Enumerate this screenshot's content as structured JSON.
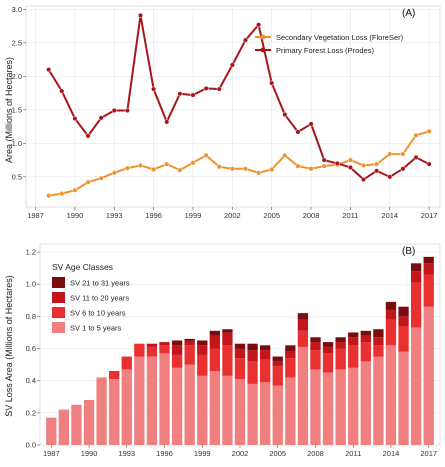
{
  "chart_data": [
    {
      "type": "line",
      "panel_label": "(A)",
      "ylabel": "Area (Millions of Hectares)",
      "xlabel": "",
      "x": [
        1988,
        1989,
        1990,
        1991,
        1992,
        1993,
        1994,
        1995,
        1996,
        1997,
        1998,
        1999,
        2000,
        2001,
        2002,
        2003,
        2004,
        2005,
        2006,
        2007,
        2008,
        2009,
        2010,
        2011,
        2012,
        2013,
        2014,
        2015,
        2016,
        2017
      ],
      "series": [
        {
          "name": "Secondary Vegetation Loss (FloreSer)",
          "color": "#f0922b",
          "values": [
            0.22,
            0.25,
            0.3,
            0.42,
            0.48,
            0.56,
            0.63,
            0.67,
            0.61,
            0.69,
            0.6,
            0.71,
            0.82,
            0.65,
            0.62,
            0.62,
            0.56,
            0.61,
            0.82,
            0.66,
            0.62,
            0.66,
            0.68,
            0.75,
            0.67,
            0.69,
            0.84,
            0.84,
            1.12,
            1.18
          ]
        },
        {
          "name": "Primary Forest Loss (Prodes)",
          "color": "#a8161b",
          "values": [
            2.1,
            1.78,
            1.37,
            1.11,
            1.38,
            1.49,
            1.49,
            2.91,
            1.81,
            1.32,
            1.74,
            1.72,
            1.82,
            1.81,
            2.17,
            2.54,
            2.77,
            1.9,
            1.43,
            1.17,
            1.29,
            0.75,
            0.7,
            0.64,
            0.46,
            0.59,
            0.5,
            0.62,
            0.79,
            0.69
          ]
        }
      ],
      "xlim": [
        1986.5,
        2017.6
      ],
      "ylim": [
        0.05,
        3.05
      ],
      "xticks": [
        "1987",
        "1990",
        "1993",
        "1996",
        "1999",
        "2002",
        "2005",
        "2008",
        "2011",
        "2014",
        "2017"
      ],
      "yticks": [
        "0.5",
        "1.0",
        "1.5",
        "2.0",
        "2.5",
        "3.0"
      ],
      "legend_position": "top-right",
      "grid": true
    },
    {
      "type": "bar",
      "stacked": true,
      "panel_label": "(B)",
      "ylabel": "SV Loss Area (Millions of Hectares)",
      "xlabel": "",
      "legend_title": "SV Age Classes",
      "legend_position": "top-left",
      "grid": true,
      "categories": [
        "1987",
        "1988",
        "1989",
        "1990",
        "1991",
        "1992",
        "1993",
        "1994",
        "1995",
        "1996",
        "1997",
        "1998",
        "1999",
        "2000",
        "2001",
        "2002",
        "2003",
        "2004",
        "2005",
        "2006",
        "2007",
        "2008",
        "2009",
        "2010",
        "2011",
        "2012",
        "2013",
        "2014",
        "2015",
        "2016",
        "2017"
      ],
      "xticks": [
        "1987",
        "1990",
        "1993",
        "1996",
        "1999",
        "2002",
        "2005",
        "2008",
        "2011",
        "2014",
        "2017"
      ],
      "yticks": [
        "0.0",
        "0.2",
        "0.4",
        "0.6",
        "0.8",
        "1.0",
        "1.2"
      ],
      "ylim": [
        0,
        1.25
      ],
      "series": [
        {
          "name": "SV 1 to 5 years",
          "color": "#f08080",
          "values": [
            0.17,
            0.22,
            0.25,
            0.28,
            0.42,
            0.41,
            0.47,
            0.55,
            0.55,
            0.57,
            0.48,
            0.5,
            0.43,
            0.46,
            0.43,
            0.41,
            0.38,
            0.39,
            0.37,
            0.42,
            0.61,
            0.47,
            0.45,
            0.47,
            0.48,
            0.52,
            0.55,
            0.62,
            0.58,
            0.73,
            0.86
          ]
        },
        {
          "name": "SV 6 to 10 years",
          "color": "#e83030",
          "values": [
            0,
            0,
            0,
            0,
            0,
            0.05,
            0.08,
            0.08,
            0.06,
            0.05,
            0.08,
            0.12,
            0.13,
            0.14,
            0.19,
            0.13,
            0.14,
            0.14,
            0.12,
            0.12,
            0.1,
            0.12,
            0.12,
            0.13,
            0.14,
            0.12,
            0.07,
            0.16,
            0.16,
            0.28,
            0.2
          ]
        },
        {
          "name": "SV 11 to 20 years",
          "color": "#c0161c",
          "values": [
            0,
            0,
            0,
            0,
            0,
            0,
            0,
            0,
            0.02,
            0.02,
            0.06,
            0.03,
            0.06,
            0.08,
            0.08,
            0.06,
            0.07,
            0.06,
            0.03,
            0.04,
            0.07,
            0.05,
            0.04,
            0.04,
            0.05,
            0.04,
            0.05,
            0.06,
            0.06,
            0.07,
            0.07
          ]
        },
        {
          "name": "SV 21 to 31 years",
          "color": "#7a0c0f",
          "values": [
            0,
            0,
            0,
            0,
            0,
            0,
            0,
            0,
            0,
            0,
            0.03,
            0.01,
            0.03,
            0.03,
            0.02,
            0.03,
            0.04,
            0.03,
            0.03,
            0.04,
            0.04,
            0.03,
            0.03,
            0.03,
            0.03,
            0.03,
            0.05,
            0.05,
            0.06,
            0.05,
            0.04
          ]
        }
      ]
    }
  ]
}
